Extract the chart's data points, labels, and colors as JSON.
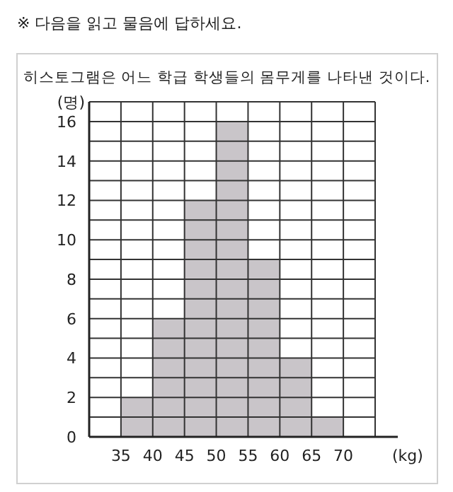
{
  "chart_data": {
    "type": "histogram",
    "title": "※ 다음을 읽고 물음에 답하세요.",
    "subtitle": "히스토그램은 어느 학급 학생들의 몸무게를 나타낸 것이다.",
    "xlabel": "(kg)",
    "ylabel": "(명)",
    "bins": [
      35,
      40,
      45,
      50,
      55,
      60,
      65,
      70
    ],
    "values": [
      2,
      6,
      12,
      16,
      9,
      4,
      1
    ],
    "color": "#c9c5c9",
    "xlim": [
      30,
      75
    ],
    "ylim": [
      0,
      17
    ],
    "xticks": [
      {
        "value": 30,
        "label": null
      },
      35,
      40,
      45,
      50,
      55,
      60,
      65,
      70,
      {
        "value": 75,
        "label": null
      }
    ],
    "yticks": [
      0,
      {
        "value": 1,
        "label": null
      },
      2,
      {
        "value": 3,
        "label": null
      },
      4,
      {
        "value": 5,
        "label": null
      },
      6,
      {
        "value": 7,
        "label": null
      },
      8,
      {
        "value": 9,
        "label": null
      },
      10,
      {
        "value": 11,
        "label": null
      },
      12,
      {
        "value": 13,
        "label": null
      },
      14,
      {
        "value": 15,
        "label": null
      },
      16,
      {
        "value": 17,
        "label": null
      }
    ],
    "grid": true
  }
}
